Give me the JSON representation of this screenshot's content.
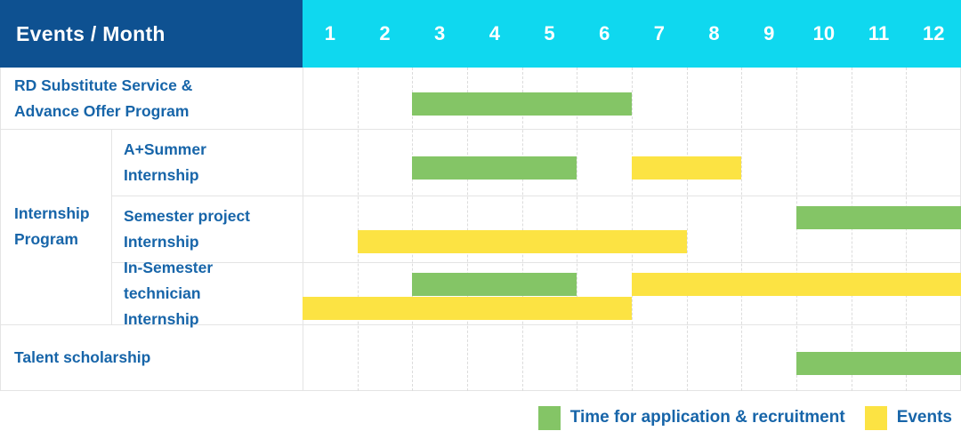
{
  "header": {
    "title": "Events / Month",
    "months": [
      "1",
      "2",
      "3",
      "4",
      "5",
      "6",
      "7",
      "8",
      "9",
      "10",
      "11",
      "12"
    ]
  },
  "colors": {
    "header_bg": "#0e5191",
    "months_bg": "#0fd8ef",
    "text_blue": "#1765a9",
    "green": "#84c566",
    "yellow": "#fce343",
    "grid_line": "#e4e4e4",
    "grid_dash": "#dcdcdc"
  },
  "legend": [
    {
      "color": "green",
      "label": "Time for application & recruitment"
    },
    {
      "color": "yellow",
      "label": "Events"
    }
  ],
  "chart_data": {
    "type": "gantt",
    "title": "Events / Month",
    "x": {
      "unit": "month",
      "ticks": [
        1,
        2,
        3,
        4,
        5,
        6,
        7,
        8,
        9,
        10,
        11,
        12
      ],
      "range": [
        1,
        12
      ]
    },
    "legend": [
      "Time for application & recruitment",
      "Events"
    ],
    "rows": [
      {
        "label": "RD Substitute Service & Advance Offer Program",
        "group": null,
        "lines": 1,
        "bars": [
          {
            "series": "Time for application & recruitment",
            "color": "green",
            "start_month": 3,
            "end_month": 6,
            "line": 0
          }
        ]
      },
      {
        "label": "A+Summer Internship",
        "group": "Internship Program",
        "lines": 1,
        "bars": [
          {
            "series": "Time for application & recruitment",
            "color": "green",
            "start_month": 3,
            "end_month": 5,
            "line": 0
          },
          {
            "series": "Events",
            "color": "yellow",
            "start_month": 7,
            "end_month": 8,
            "line": 0
          }
        ]
      },
      {
        "label": "Semester project Internship",
        "group": "Internship Program",
        "lines": 2,
        "bars": [
          {
            "series": "Time for application & recruitment",
            "color": "green",
            "start_month": 10,
            "end_month": 12,
            "line": 0
          },
          {
            "series": "Events",
            "color": "yellow",
            "start_month": 2,
            "end_month": 7,
            "line": 1
          }
        ]
      },
      {
        "label": "In-Semester technician Internship",
        "group": "Internship Program",
        "lines": 2,
        "bars": [
          {
            "series": "Time for application & recruitment",
            "color": "green",
            "start_month": 3,
            "end_month": 5,
            "line": 0
          },
          {
            "series": "Events",
            "color": "yellow",
            "start_month": 7,
            "end_month": 12,
            "line": 0
          },
          {
            "series": "Events",
            "color": "yellow",
            "start_month": 1,
            "end_month": 6,
            "line": 1
          }
        ]
      },
      {
        "label": "Talent scholarship",
        "group": null,
        "lines": 1,
        "bars": [
          {
            "series": "Time for application & recruitment",
            "color": "green",
            "start_month": 10,
            "end_month": 12,
            "line": 0
          }
        ]
      }
    ]
  }
}
